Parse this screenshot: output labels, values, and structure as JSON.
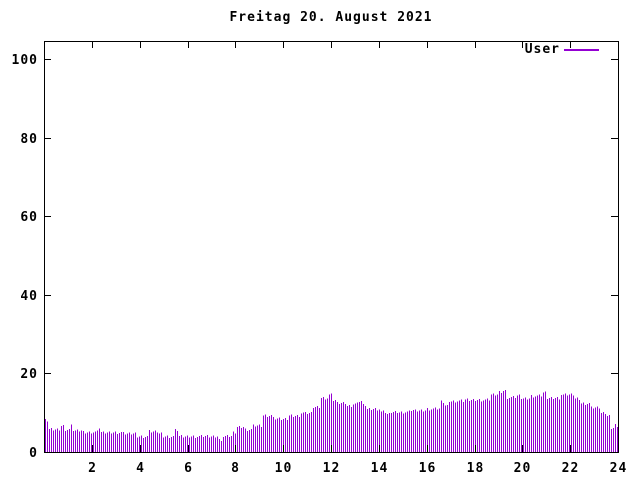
{
  "title": "Freitag 20. August 2021",
  "legend": {
    "label": "User",
    "position": "top-right-inside"
  },
  "colors": {
    "series": "#9400D3",
    "axis": "#000000",
    "text": "#000000",
    "background": "#ffffff"
  },
  "chart_data": {
    "type": "bar",
    "title": "Freitag 20. August 2021",
    "series_name": "User",
    "xlabel": "",
    "ylabel": "",
    "xlim": [
      0,
      24
    ],
    "ylim": [
      0,
      104.6
    ],
    "x_ticks": [
      2,
      4,
      6,
      8,
      10,
      12,
      14,
      16,
      18,
      20,
      22,
      24
    ],
    "y_ticks": [
      0,
      20,
      40,
      60,
      80,
      100
    ],
    "grid": false,
    "style": "impulses",
    "sample_interval_hours": 0.08333,
    "envelope_steps_hour_value": [
      [
        0.0,
        8.0
      ],
      [
        0.17,
        5.8
      ],
      [
        0.7,
        6.7
      ],
      [
        0.87,
        5.7
      ],
      [
        1.08,
        6.7
      ],
      [
        1.21,
        5.5
      ],
      [
        1.63,
        5.1
      ],
      [
        2.25,
        6.2
      ],
      [
        2.38,
        5.0
      ],
      [
        3.3,
        4.7
      ],
      [
        3.85,
        4.0
      ],
      [
        4.38,
        5.2
      ],
      [
        4.77,
        4.7
      ],
      [
        4.97,
        4.0
      ],
      [
        5.43,
        5.5
      ],
      [
        5.6,
        4.0
      ],
      [
        7.3,
        3.2
      ],
      [
        7.45,
        4.0
      ],
      [
        7.9,
        5.0
      ],
      [
        8.06,
        6.4
      ],
      [
        8.4,
        5.8
      ],
      [
        8.72,
        6.7
      ],
      [
        9.15,
        9.3
      ],
      [
        9.65,
        8.4
      ],
      [
        10.2,
        9.3
      ],
      [
        10.68,
        9.9
      ],
      [
        11.2,
        11.5
      ],
      [
        11.5,
        13.8
      ],
      [
        11.88,
        14.6
      ],
      [
        12.08,
        13.2
      ],
      [
        12.25,
        12.5
      ],
      [
        12.62,
        11.8
      ],
      [
        12.9,
        12.2
      ],
      [
        13.13,
        13.0
      ],
      [
        13.26,
        12.0
      ],
      [
        13.47,
        11.0
      ],
      [
        14.05,
        10.2
      ],
      [
        14.28,
        9.7
      ],
      [
        14.45,
        10.2
      ],
      [
        15.3,
        10.6
      ],
      [
        16.0,
        11.0
      ],
      [
        16.57,
        12.8
      ],
      [
        16.7,
        11.8
      ],
      [
        16.86,
        13.0
      ],
      [
        17.55,
        13.3
      ],
      [
        18.66,
        14.6
      ],
      [
        18.95,
        15.3
      ],
      [
        19.18,
        15.6
      ],
      [
        19.33,
        13.9
      ],
      [
        19.7,
        14.4
      ],
      [
        19.9,
        13.7
      ],
      [
        20.3,
        14.3
      ],
      [
        20.83,
        15.1
      ],
      [
        21.0,
        13.8
      ],
      [
        21.6,
        14.6
      ],
      [
        22.2,
        13.6
      ],
      [
        22.42,
        12.4
      ],
      [
        22.85,
        11.3
      ],
      [
        23.25,
        10.0
      ],
      [
        23.5,
        9.2
      ],
      [
        23.7,
        6.3
      ],
      [
        23.83,
        7.0
      ],
      [
        23.93,
        6.0
      ]
    ]
  }
}
